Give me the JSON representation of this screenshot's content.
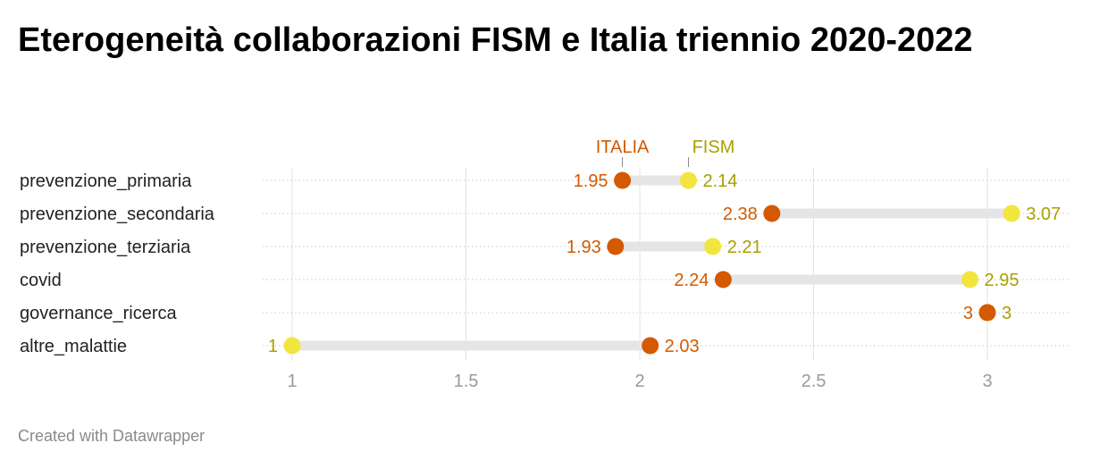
{
  "title": "Eterogeneità collaborazioni FISM e Italia triennio 2020-2022",
  "credit": "Created with Datawrapper",
  "colors": {
    "italia": "#d35a00",
    "fism": "#f2e53d",
    "fism_text": "#a8a000",
    "range": "#e5e5e5",
    "grid": "#cccccc"
  },
  "chart_data": {
    "type": "dumbbell",
    "title": "Eterogeneità collaborazioni FISM e Italia triennio 2020-2022",
    "xlim": [
      1,
      3.2
    ],
    "xticks": [
      1,
      1.5,
      2,
      2.5,
      3
    ],
    "xtick_labels": [
      "1",
      "1.5",
      "2",
      "2.5",
      "3"
    ],
    "grid": true,
    "legend": {
      "italia": "ITALIA",
      "fism": "FISM"
    },
    "categories": [
      "prevenzione_primaria",
      "prevenzione_secondaria",
      "prevenzione_terziaria",
      "covid",
      "governance_ricerca",
      "altre_malattie"
    ],
    "series": [
      {
        "name": "ITALIA",
        "values": [
          1.95,
          2.38,
          1.93,
          2.24,
          3,
          2.03
        ]
      },
      {
        "name": "FISM",
        "values": [
          2.14,
          3.07,
          2.21,
          2.95,
          3,
          1
        ]
      }
    ]
  }
}
